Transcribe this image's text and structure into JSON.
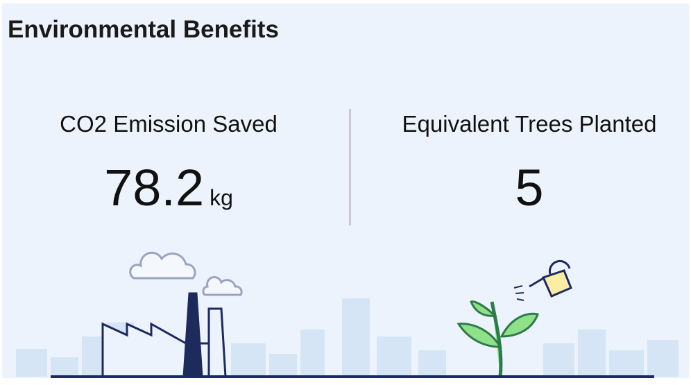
{
  "header": {
    "title": "Environmental Benefits"
  },
  "metrics": [
    {
      "label": "CO2 Emission Saved",
      "value": 78.2,
      "unit": "kg"
    },
    {
      "label": "Equivalent Trees Planted",
      "value": 5
    }
  ]
}
